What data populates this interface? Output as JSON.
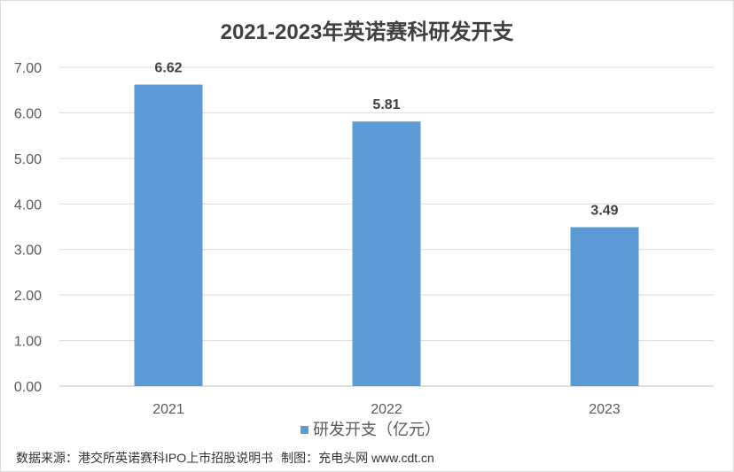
{
  "chart_data": {
    "type": "bar",
    "title": "2021-2023年英诺赛科研发开支",
    "categories": [
      "2021",
      "2022",
      "2023"
    ],
    "series": [
      {
        "name": "研发开支（亿元）",
        "values": [
          6.62,
          5.81,
          3.49
        ],
        "color": "#5B9BD5"
      }
    ],
    "ylim": [
      0,
      7
    ],
    "yticks": [
      0,
      1,
      2,
      3,
      4,
      5,
      6,
      7
    ],
    "ytick_labels": [
      "0.00",
      "1.00",
      "2.00",
      "3.00",
      "4.00",
      "5.00",
      "6.00",
      "7.00"
    ],
    "grid": true,
    "legend": {
      "position": "bottom"
    }
  },
  "footer": {
    "source": "数据来源：港交所英诺赛科IPO上市招股说明书",
    "credit": "制图：充电头网 www.cdt.cn"
  }
}
